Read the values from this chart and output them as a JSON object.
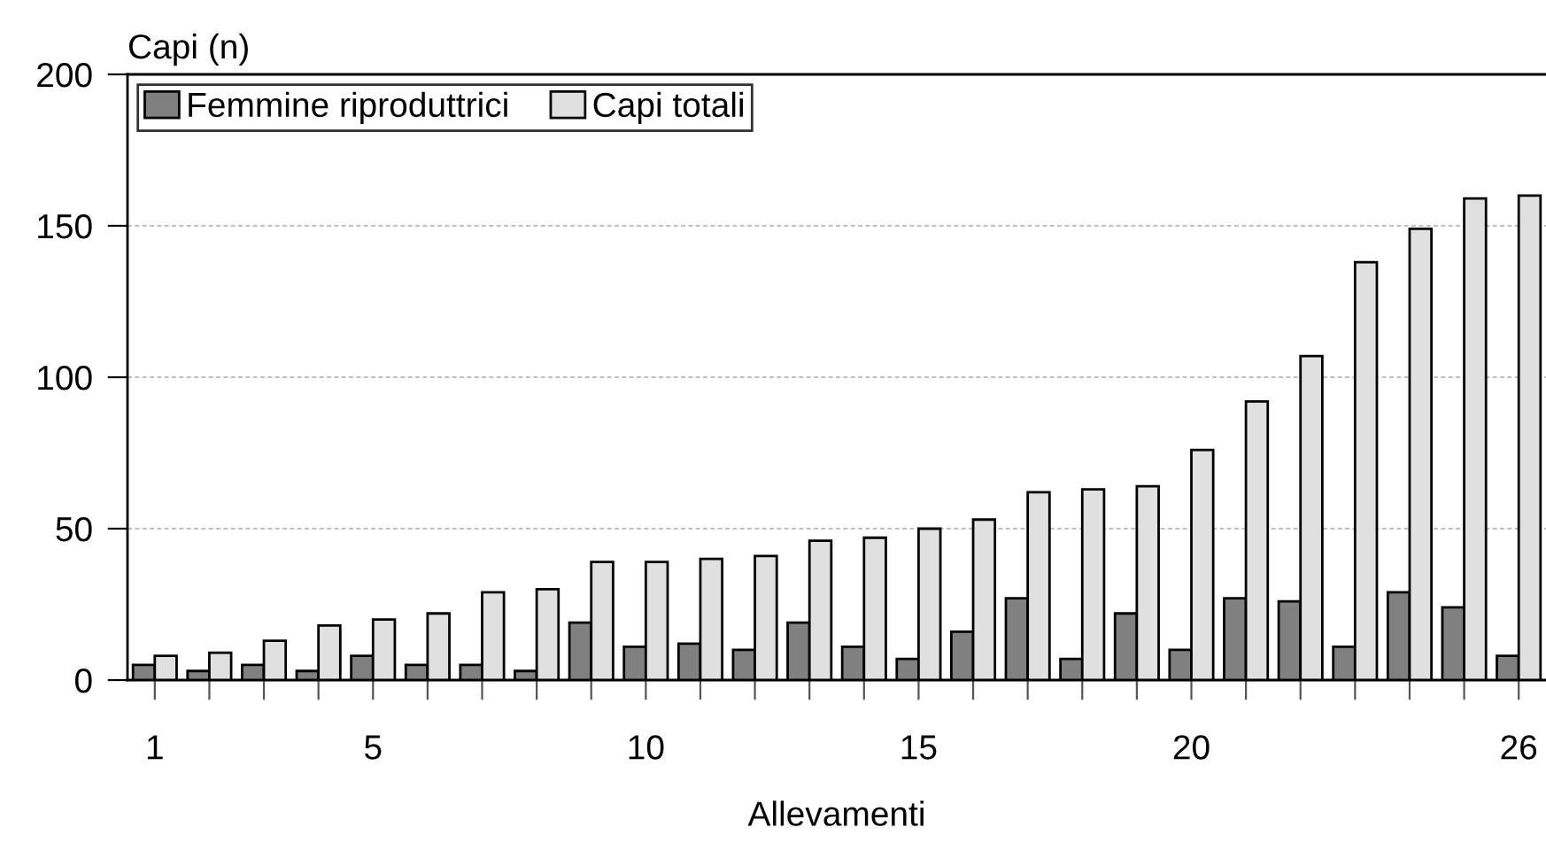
{
  "chart_data": {
    "type": "bar",
    "xlabel": "Allevamenti",
    "ylabel": "Capi (n)",
    "categories": [
      "1",
      null,
      null,
      null,
      "5",
      null,
      null,
      null,
      null,
      "10",
      null,
      null,
      null,
      null,
      "15",
      null,
      null,
      null,
      null,
      "20",
      null,
      null,
      null,
      null,
      null,
      "26"
    ],
    "series": [
      {
        "name": "Femmine riproduttrici",
        "color": "#808080",
        "values": [
          5,
          3,
          5,
          3,
          8,
          5,
          5,
          3,
          19,
          11,
          12,
          10,
          19,
          11,
          7,
          16,
          27,
          7,
          22,
          10,
          27,
          26,
          11,
          29,
          24,
          8
        ]
      },
      {
        "name": "Capi totali",
        "color": "#e0e0e0",
        "values": [
          8,
          9,
          13,
          18,
          20,
          22,
          29,
          30,
          39,
          39,
          40,
          41,
          46,
          47,
          50,
          53,
          62,
          63,
          64,
          76,
          92,
          107,
          138,
          149,
          159,
          160
        ]
      }
    ],
    "ylim": [
      0,
      200
    ],
    "yticks": [
      0,
      50,
      100,
      150,
      200
    ],
    "grid": "y",
    "legend": "top left"
  }
}
